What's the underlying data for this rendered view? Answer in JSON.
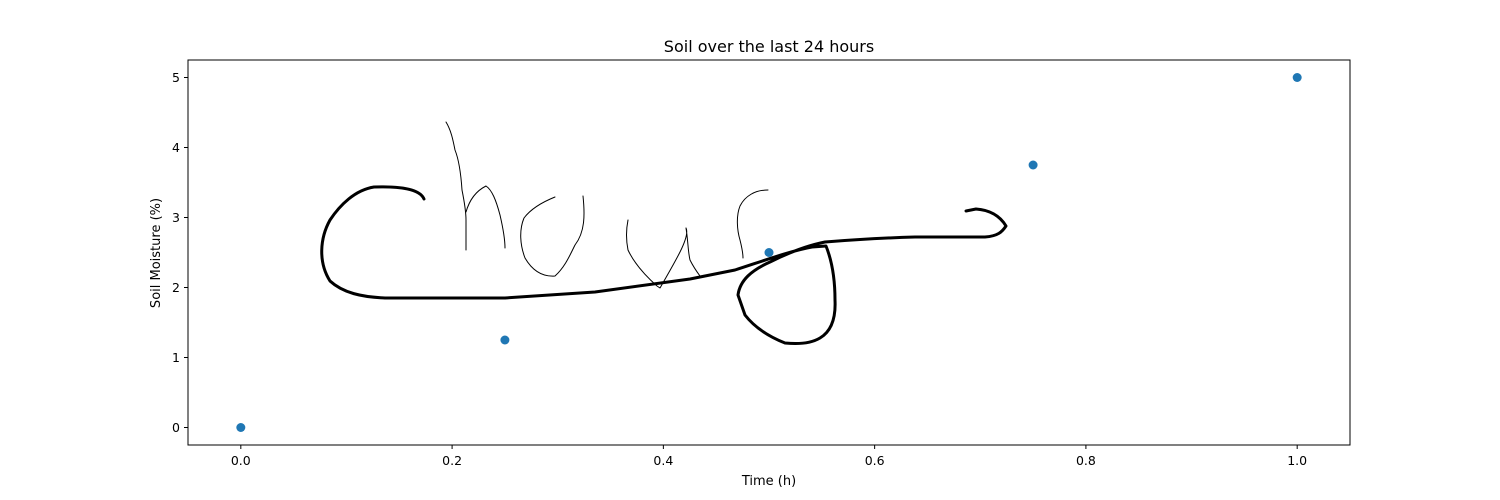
{
  "chart_data": {
    "type": "scatter",
    "title": "Soil over the last 24 hours",
    "xlabel": "Time (h)",
    "ylabel": "Soil Moisture (%)",
    "x": [
      0.0,
      0.25,
      0.5,
      0.75,
      1.0
    ],
    "y": [
      0.0,
      1.25,
      2.5,
      3.75,
      5.0
    ],
    "xlim": [
      -0.05,
      1.05
    ],
    "ylim": [
      -0.25,
      5.25
    ],
    "xticks": [
      0.0,
      0.2,
      0.4,
      0.6,
      0.8,
      1.0
    ],
    "xtick_labels": [
      "0.0",
      "0.2",
      "0.4",
      "0.6",
      "0.8",
      "1.0"
    ],
    "yticks": [
      0,
      1,
      2,
      3,
      4,
      5
    ],
    "ytick_labels": [
      "0",
      "1",
      "2",
      "3",
      "4",
      "5"
    ],
    "grid": false,
    "marker_color": "#1f77b4",
    "annotation": "Chong"
  }
}
